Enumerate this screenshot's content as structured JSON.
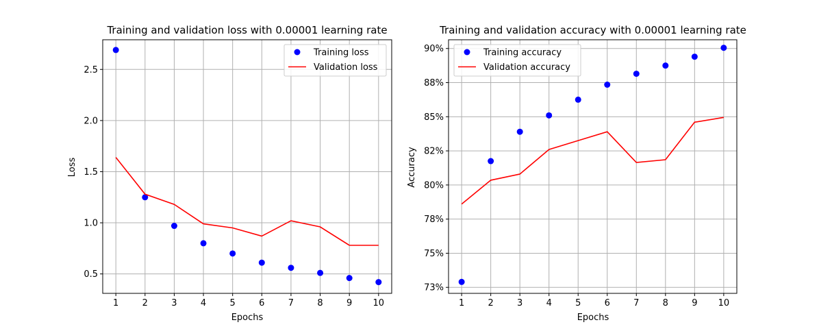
{
  "chart_data": [
    {
      "type": "line",
      "title": "Training and validation loss with 0.00001 learning rate",
      "xlabel": "Epochs",
      "ylabel": "Loss",
      "x": [
        1,
        2,
        3,
        4,
        5,
        6,
        7,
        8,
        9,
        10
      ],
      "xlim": [
        0.55,
        10.45
      ],
      "ylim": [
        0.31,
        2.79
      ],
      "yticks": [
        0.5,
        1.0,
        1.5,
        2.0,
        2.5
      ],
      "ytick_labels": [
        "0.5",
        "1.0",
        "1.5",
        "2.0",
        "2.5"
      ],
      "grid": true,
      "legend_position": "top-right",
      "series": [
        {
          "name": "Training loss",
          "style": "markers",
          "color": "#0000ff",
          "values": [
            2.69,
            1.25,
            0.97,
            0.8,
            0.7,
            0.61,
            0.56,
            0.51,
            0.46,
            0.42
          ]
        },
        {
          "name": "Validation loss",
          "style": "line",
          "color": "#ff0000",
          "values": [
            1.64,
            1.28,
            1.18,
            0.99,
            0.95,
            0.87,
            1.02,
            0.96,
            0.78,
            0.78
          ]
        }
      ]
    },
    {
      "type": "line",
      "title": "Training and validation accuracy with 0.00001 learning rate",
      "xlabel": "Epochs",
      "ylabel": "Accuracy",
      "x": [
        1,
        2,
        3,
        4,
        5,
        6,
        7,
        8,
        9,
        10
      ],
      "xlim": [
        0.55,
        10.45
      ],
      "ylim": [
        0.7206,
        0.9064
      ],
      "yticks": [
        0.725,
        0.75,
        0.775,
        0.8,
        0.825,
        0.85,
        0.875,
        0.9
      ],
      "ytick_labels": [
        "73%",
        "75%",
        "78%",
        "80%",
        "82%",
        "85%",
        "88%",
        "90%"
      ],
      "grid": true,
      "legend_position": "top-left",
      "series": [
        {
          "name": "Training accuracy",
          "style": "markers",
          "color": "#0000ff",
          "values": [
            0.729,
            0.8175,
            0.839,
            0.851,
            0.8625,
            0.8735,
            0.8815,
            0.8875,
            0.894,
            0.9005
          ]
        },
        {
          "name": "Validation accuracy",
          "style": "line",
          "color": "#ff0000",
          "values": [
            0.786,
            0.8035,
            0.808,
            0.826,
            0.8325,
            0.839,
            0.8165,
            0.8185,
            0.846,
            0.8495
          ]
        }
      ]
    }
  ]
}
